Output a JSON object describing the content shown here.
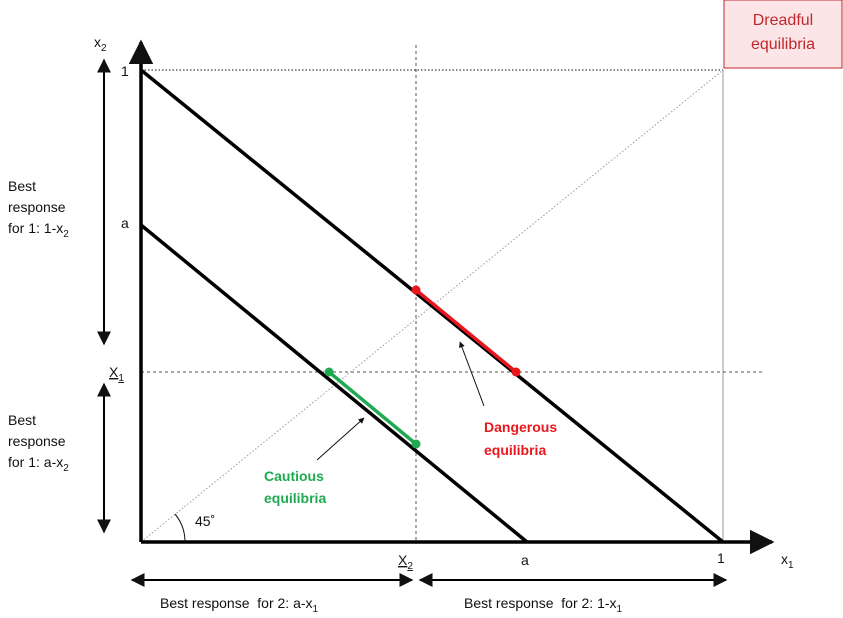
{
  "axes": {
    "x_label": "x",
    "x_sub": "1",
    "y_label": "x",
    "y_sub": "2"
  },
  "ticks": {
    "y_one": "1",
    "y_a": "a",
    "y_X": "X",
    "y_X_sub": "1",
    "x_X": "X",
    "x_X_sub": "2",
    "x_a": "a",
    "x_one": "1"
  },
  "angle_label": "45˚",
  "regions": {
    "dreadful_line1": "Dreadful",
    "dreadful_line2": "equilibria",
    "dangerous_line1": "Dangerous",
    "dangerous_line2": "equilibria",
    "cautious_line1": "Cautious",
    "cautious_line2": "equilibria"
  },
  "left_arrows": {
    "upper_line1": "Best",
    "upper_line2": "response",
    "upper_line3": "for 1: 1-x",
    "upper_sub": "2",
    "lower_line1": "Best",
    "lower_line2": "response",
    "lower_line3": "for 1: a-x",
    "lower_sub": "2"
  },
  "bottom_arrows": {
    "left_text": "Best response  for 2: a-x",
    "left_sub": "1",
    "right_text": "Best response  for 2: 1-x",
    "right_sub": "1"
  },
  "colors": {
    "danger": "#e8171e",
    "caution": "#1faa52",
    "box_fill": "#fbe5e6",
    "box_border": "#c1272d"
  }
}
